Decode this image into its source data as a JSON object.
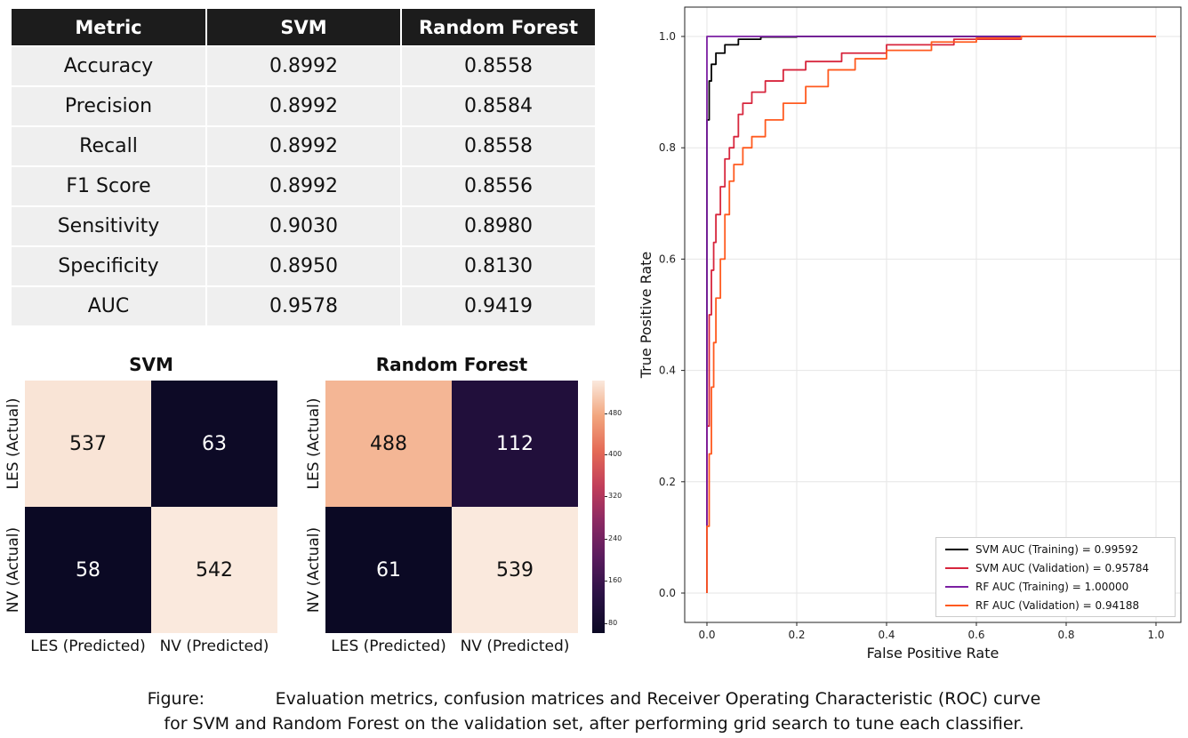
{
  "metrics_table": {
    "headers": [
      "Metric",
      "SVM",
      "Random Forest"
    ],
    "rows": [
      [
        "Accuracy",
        "0.8992",
        "0.8558"
      ],
      [
        "Precision",
        "0.8992",
        "0.8584"
      ],
      [
        "Recall",
        "0.8992",
        "0.8558"
      ],
      [
        "F1 Score",
        "0.8992",
        "0.8556"
      ],
      [
        "Sensitivity",
        "0.9030",
        "0.8980"
      ],
      [
        "Specificity",
        "0.8950",
        "0.8130"
      ],
      [
        "AUC",
        "0.9578",
        "0.9419"
      ]
    ]
  },
  "confusion": {
    "svm": {
      "title": "SVM",
      "cells": [
        "537",
        "63",
        "58",
        "542"
      ]
    },
    "rf": {
      "title": "Random Forest",
      "cells": [
        "488",
        "112",
        "61",
        "539"
      ]
    },
    "row_labels": [
      "LES (Actual)",
      "NV (Actual)"
    ],
    "col_labels": [
      "LES (Predicted)",
      "NV (Predicted)"
    ],
    "colorbar_ticks": [
      "480",
      "400",
      "320",
      "240",
      "160",
      "80"
    ]
  },
  "chart_data": [
    {
      "type": "heatmap",
      "title": "SVM",
      "rows": [
        "LES (Actual)",
        "NV (Actual)"
      ],
      "columns": [
        "LES (Predicted)",
        "NV (Predicted)"
      ],
      "values": [
        [
          537,
          63
        ],
        [
          58,
          542
        ]
      ]
    },
    {
      "type": "heatmap",
      "title": "Random Forest",
      "rows": [
        "LES (Actual)",
        "NV (Actual)"
      ],
      "columns": [
        "LES (Predicted)",
        "NV (Predicted)"
      ],
      "values": [
        [
          488,
          112
        ],
        [
          61,
          539
        ]
      ],
      "colorbar_ticks": [
        80,
        160,
        240,
        320,
        400,
        480
      ]
    },
    {
      "type": "line",
      "xlabel": "False Positive Rate",
      "ylabel": "True Positive Rate",
      "xlim": [
        0,
        1
      ],
      "ylim": [
        0,
        1
      ],
      "xticks": [
        "0.0",
        "0.2",
        "0.4",
        "0.6",
        "0.8",
        "1.0"
      ],
      "yticks": [
        "0.0",
        "0.2",
        "0.4",
        "0.6",
        "0.8",
        "1.0"
      ],
      "grid": true,
      "legend_position": "bottom-right",
      "series": [
        {
          "name": "SVM AUC (Training) = 0.99592",
          "color": "#000000",
          "points": [
            [
              0,
              0
            ],
            [
              0,
              0.5
            ],
            [
              0,
              0.85
            ],
            [
              0.005,
              0.92
            ],
            [
              0.01,
              0.95
            ],
            [
              0.02,
              0.97
            ],
            [
              0.04,
              0.985
            ],
            [
              0.07,
              0.995
            ],
            [
              0.12,
              0.999
            ],
            [
              0.2,
              1.0
            ],
            [
              1.0,
              1.0
            ]
          ]
        },
        {
          "name": "SVM AUC (Validation) = 0.95784",
          "color": "#d7263d",
          "points": [
            [
              0,
              0
            ],
            [
              0,
              0.3
            ],
            [
              0.005,
              0.5
            ],
            [
              0.01,
              0.58
            ],
            [
              0.015,
              0.63
            ],
            [
              0.02,
              0.68
            ],
            [
              0.03,
              0.73
            ],
            [
              0.04,
              0.78
            ],
            [
              0.05,
              0.8
            ],
            [
              0.06,
              0.82
            ],
            [
              0.07,
              0.86
            ],
            [
              0.08,
              0.88
            ],
            [
              0.1,
              0.9
            ],
            [
              0.13,
              0.92
            ],
            [
              0.17,
              0.94
            ],
            [
              0.22,
              0.955
            ],
            [
              0.3,
              0.97
            ],
            [
              0.4,
              0.985
            ],
            [
              0.55,
              0.995
            ],
            [
              0.7,
              1.0
            ],
            [
              1.0,
              1.0
            ]
          ]
        },
        {
          "name": "RF AUC (Training) = 1.00000",
          "color": "#7b1fa2",
          "points": [
            [
              0,
              0
            ],
            [
              0,
              1.0
            ],
            [
              1.0,
              1.0
            ]
          ]
        },
        {
          "name": "RF AUC (Validation) = 0.94188",
          "color": "#ff5a1f",
          "points": [
            [
              0,
              0
            ],
            [
              0,
              0.12
            ],
            [
              0.005,
              0.25
            ],
            [
              0.01,
              0.37
            ],
            [
              0.015,
              0.45
            ],
            [
              0.02,
              0.53
            ],
            [
              0.03,
              0.6
            ],
            [
              0.04,
              0.68
            ],
            [
              0.05,
              0.74
            ],
            [
              0.06,
              0.77
            ],
            [
              0.08,
              0.8
            ],
            [
              0.1,
              0.82
            ],
            [
              0.13,
              0.85
            ],
            [
              0.17,
              0.88
            ],
            [
              0.22,
              0.91
            ],
            [
              0.27,
              0.94
            ],
            [
              0.33,
              0.96
            ],
            [
              0.4,
              0.975
            ],
            [
              0.5,
              0.99
            ],
            [
              0.6,
              0.997
            ],
            [
              0.7,
              1.0
            ],
            [
              1.0,
              1.0
            ]
          ]
        }
      ]
    }
  ],
  "caption": {
    "label": "Figure:",
    "line1": "Evaluation metrics, confusion matrices and Receiver Operating Characteristic (ROC) curve",
    "line2": "for SVM and Random Forest on the validation set, after performing grid search to tune each classifier."
  }
}
